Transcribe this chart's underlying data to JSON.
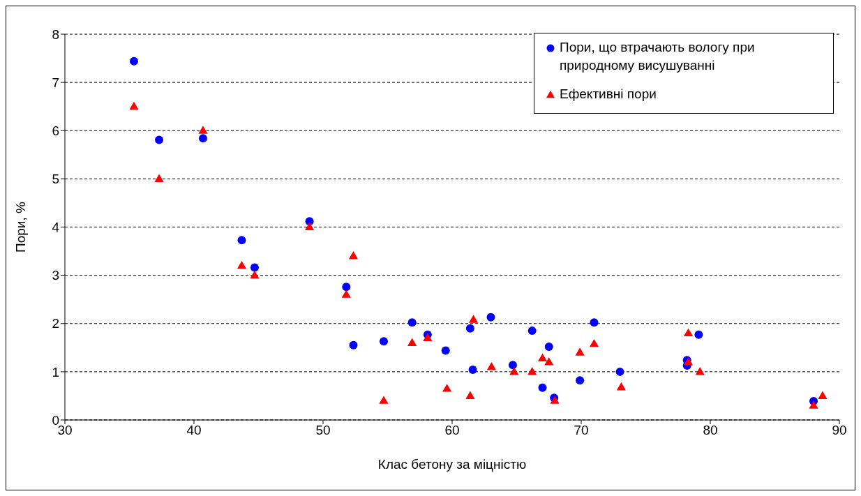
{
  "chart_data": {
    "type": "scatter",
    "xlabel": "Клас бетону за міцністю",
    "ylabel": "Пори, %",
    "xlim": [
      30,
      90
    ],
    "xticks": [
      30,
      40,
      50,
      60,
      70,
      80,
      90
    ],
    "ylim": [
      0,
      8
    ],
    "yticks": [
      0,
      1,
      2,
      3,
      4,
      5,
      6,
      7,
      8
    ],
    "grid": "y",
    "legend": "top right",
    "series": [
      {
        "name": "Пори, що втрачають вологу при природному висушуванні",
        "color": "#0000ff",
        "marker": "circle",
        "x": [
          35.35,
          37.3,
          40.7,
          43.7,
          44.7,
          48.95,
          51.8,
          52.35,
          54.7,
          56.9,
          58.1,
          59.5,
          61.4,
          61.6,
          63.0,
          64.7,
          66.2,
          67.5,
          67.0,
          67.9,
          69.9,
          71.0,
          73.0,
          78.2,
          78.2,
          79.1,
          88.0
        ],
        "values": [
          7.44,
          5.81,
          5.84,
          3.73,
          3.16,
          4.12,
          2.76,
          1.55,
          1.63,
          2.02,
          1.77,
          1.44,
          1.9,
          1.04,
          2.13,
          1.14,
          1.85,
          1.52,
          0.67,
          0.46,
          0.82,
          2.02,
          1.0,
          1.24,
          1.13,
          1.77,
          0.39
        ]
      },
      {
        "name": "Ефективні пори",
        "color": "#ff0000",
        "marker": "triangle",
        "x": [
          35.35,
          37.3,
          40.7,
          43.7,
          44.7,
          48.95,
          51.8,
          52.35,
          54.7,
          56.9,
          58.1,
          59.6,
          61.4,
          61.65,
          63.05,
          64.8,
          66.2,
          67.0,
          67.5,
          67.95,
          69.9,
          71.0,
          73.1,
          78.3,
          78.3,
          79.2,
          88.0,
          88.7
        ],
        "values": [
          6.5,
          5.0,
          6.0,
          3.2,
          3.0,
          4.0,
          2.6,
          3.4,
          0.4,
          1.6,
          1.7,
          0.65,
          0.5,
          2.08,
          1.1,
          1.0,
          1.0,
          1.28,
          1.2,
          0.4,
          1.4,
          1.58,
          0.68,
          1.2,
          1.8,
          1.0,
          0.3,
          0.5
        ]
      }
    ]
  }
}
